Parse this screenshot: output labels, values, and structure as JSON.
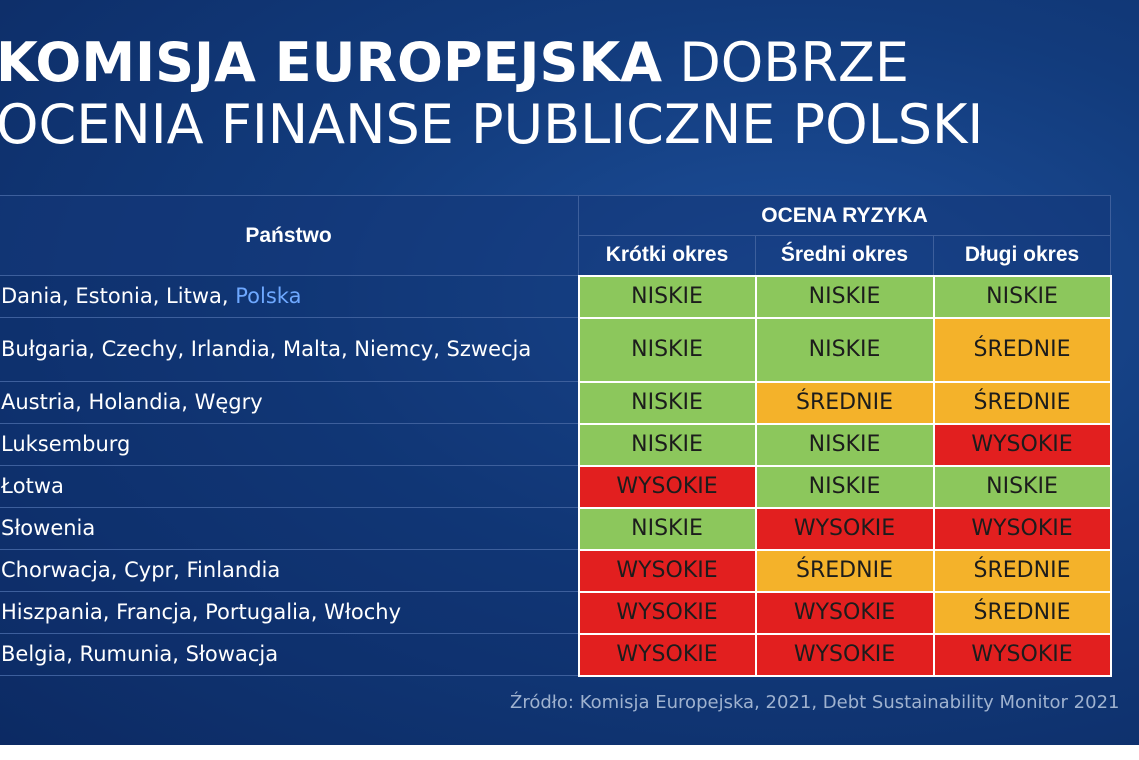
{
  "title": {
    "line1_bold": "KOMISJA EUROPEJSKA",
    "line1_light": " DOBRZE",
    "line2": "OCENIA FINANSE PUBLICZNE POLSKI"
  },
  "table": {
    "country_header": "Państwo",
    "risk_header": "OCENA RYZYKA",
    "period_headers": [
      "Krótki okres",
      "Średni okres",
      "Długi okres"
    ],
    "rows": [
      {
        "country": "Dania, Estonia, Litwa, ",
        "highlight": "Polska",
        "values": [
          "NISKIE",
          "NISKIE",
          "NISKIE"
        ]
      },
      {
        "country": "Bułgaria, Czechy, Irlandia, Malta, Niemcy, Szwecja",
        "highlight": "",
        "values": [
          "NISKIE",
          "NISKIE",
          "ŚREDNIE"
        ]
      },
      {
        "country": "Austria, Holandia, Węgry",
        "highlight": "",
        "values": [
          "NISKIE",
          "ŚREDNIE",
          "ŚREDNIE"
        ]
      },
      {
        "country": "Luksemburg",
        "highlight": "",
        "values": [
          "NISKIE",
          "NISKIE",
          "WYSOKIE"
        ]
      },
      {
        "country": "Łotwa",
        "highlight": "",
        "values": [
          "WYSOKIE",
          "NISKIE",
          "NISKIE"
        ]
      },
      {
        "country": "Słowenia",
        "highlight": "",
        "values": [
          "NISKIE",
          "WYSOKIE",
          "WYSOKIE"
        ]
      },
      {
        "country": "Chorwacja, Cypr, Finlandia",
        "highlight": "",
        "values": [
          "WYSOKIE",
          "ŚREDNIE",
          "ŚREDNIE"
        ]
      },
      {
        "country": "Hiszpania, Francja, Portugalia, Włochy",
        "highlight": "",
        "values": [
          "WYSOKIE",
          "WYSOKIE",
          "ŚREDNIE"
        ]
      },
      {
        "country": "Belgia, Rumunia, Słowacja",
        "highlight": "",
        "values": [
          "WYSOKIE",
          "WYSOKIE",
          "WYSOKIE"
        ]
      }
    ]
  },
  "colors": {
    "NISKIE": "#8cc75c",
    "ŚREDNIE": "#f4b22a",
    "WYSOKIE": "#e21f1f",
    "highlight": "#6ea8ff"
  },
  "source": "Źródło: Komisja Europejska, 2021, Debt Sustainability Monitor 2021"
}
